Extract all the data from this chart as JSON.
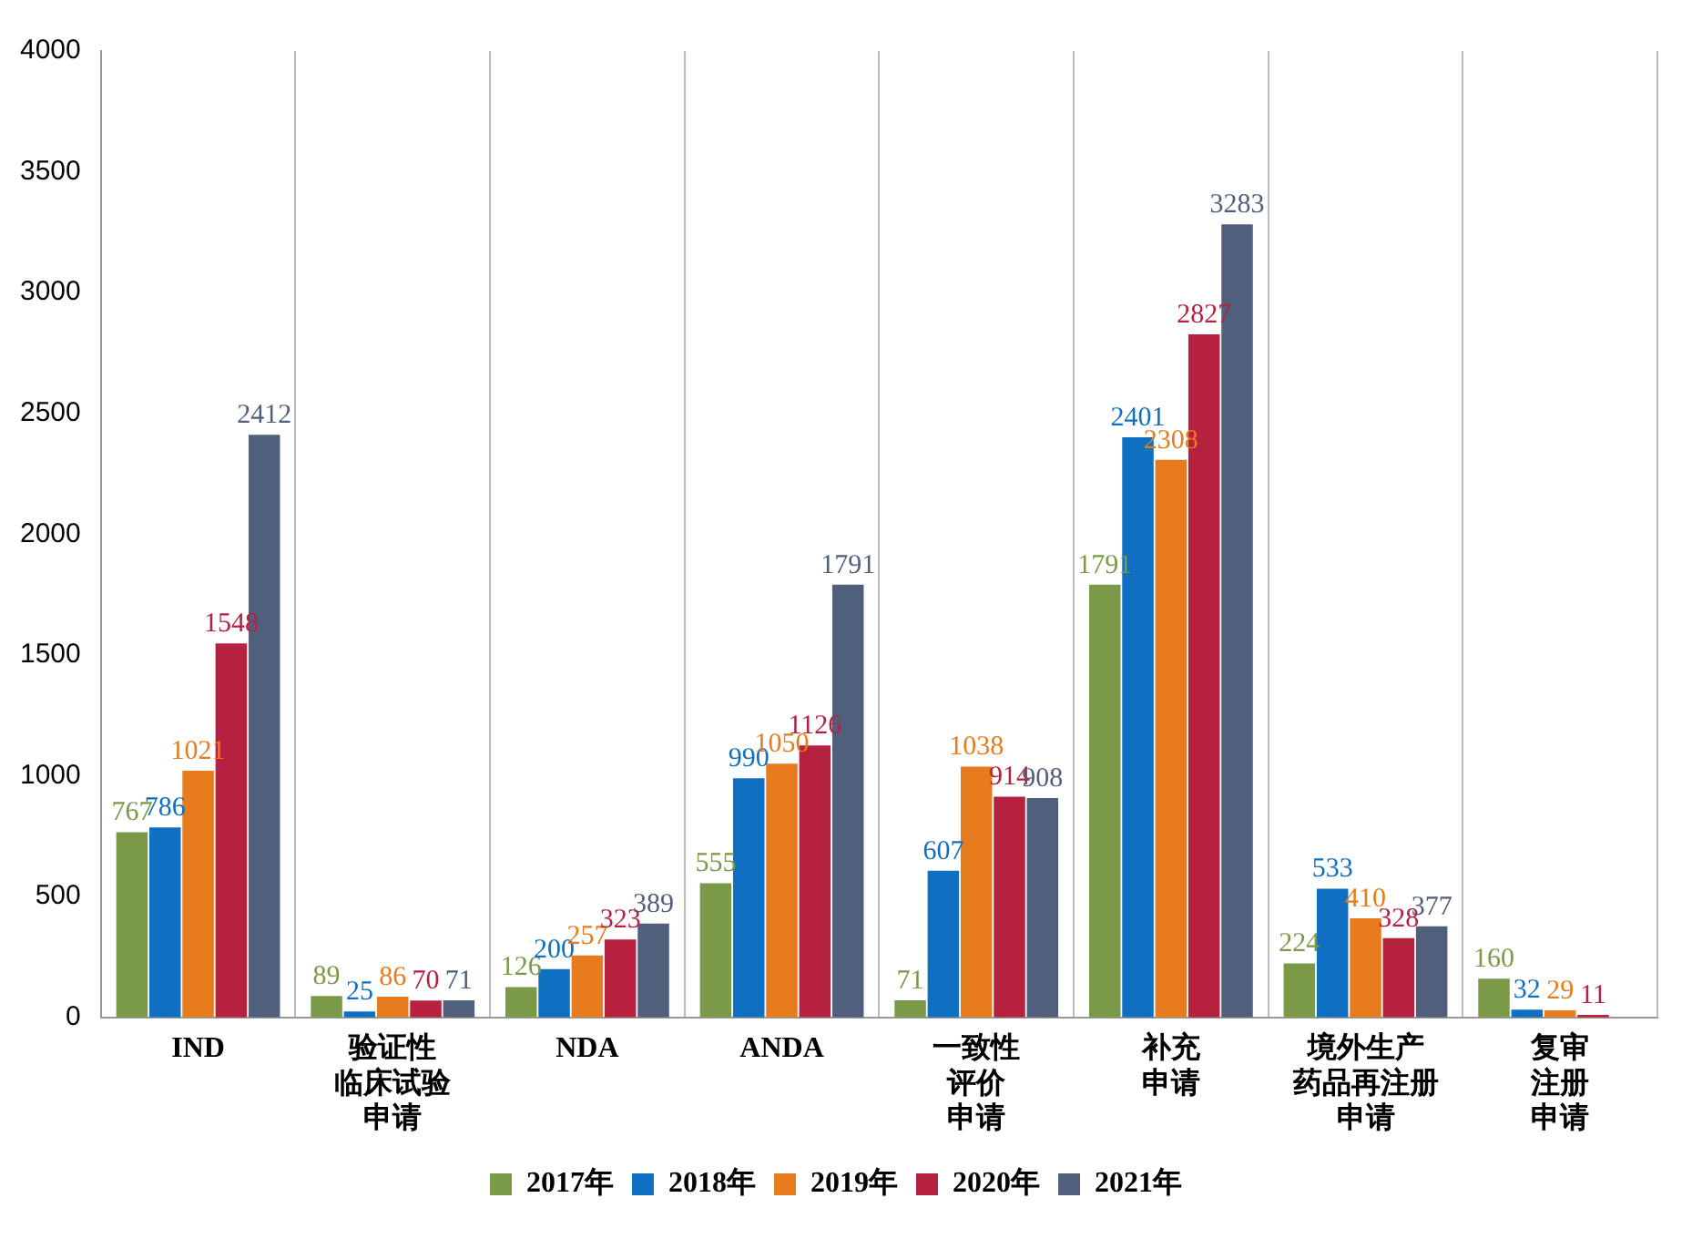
{
  "chart_data": {
    "type": "bar",
    "categories": [
      "IND",
      "验证性临床试验申请",
      "NDA",
      "ANDA",
      "一致性评价申请",
      "补充申请",
      "境外生产药品再注册申请",
      "复审注册申请"
    ],
    "series": [
      {
        "name": "2017年",
        "color": "#7a9a48",
        "values": [
          767,
          89,
          126,
          555,
          71,
          1791,
          224,
          160
        ]
      },
      {
        "name": "2018年",
        "color": "#0f6fc0",
        "values": [
          786,
          25,
          200,
          990,
          607,
          2401,
          533,
          32
        ]
      },
      {
        "name": "2019年",
        "color": "#e87b1e",
        "values": [
          1021,
          86,
          257,
          1050,
          1038,
          2308,
          410,
          29
        ]
      },
      {
        "name": "2020年",
        "color": "#b5213e",
        "values": [
          1548,
          70,
          323,
          1126,
          914,
          2827,
          328,
          11
        ]
      },
      {
        "name": "2021年",
        "color": "#4f5f7c",
        "values": [
          2412,
          71,
          389,
          1791,
          908,
          3283,
          377,
          null
        ]
      }
    ],
    "ylim": [
      0,
      4000
    ],
    "yticks": [
      0,
      500,
      1000,
      1500,
      2000,
      2500,
      3000,
      3500,
      4000
    ],
    "grid": "x",
    "legend": "bottom",
    "data_labels": true
  }
}
